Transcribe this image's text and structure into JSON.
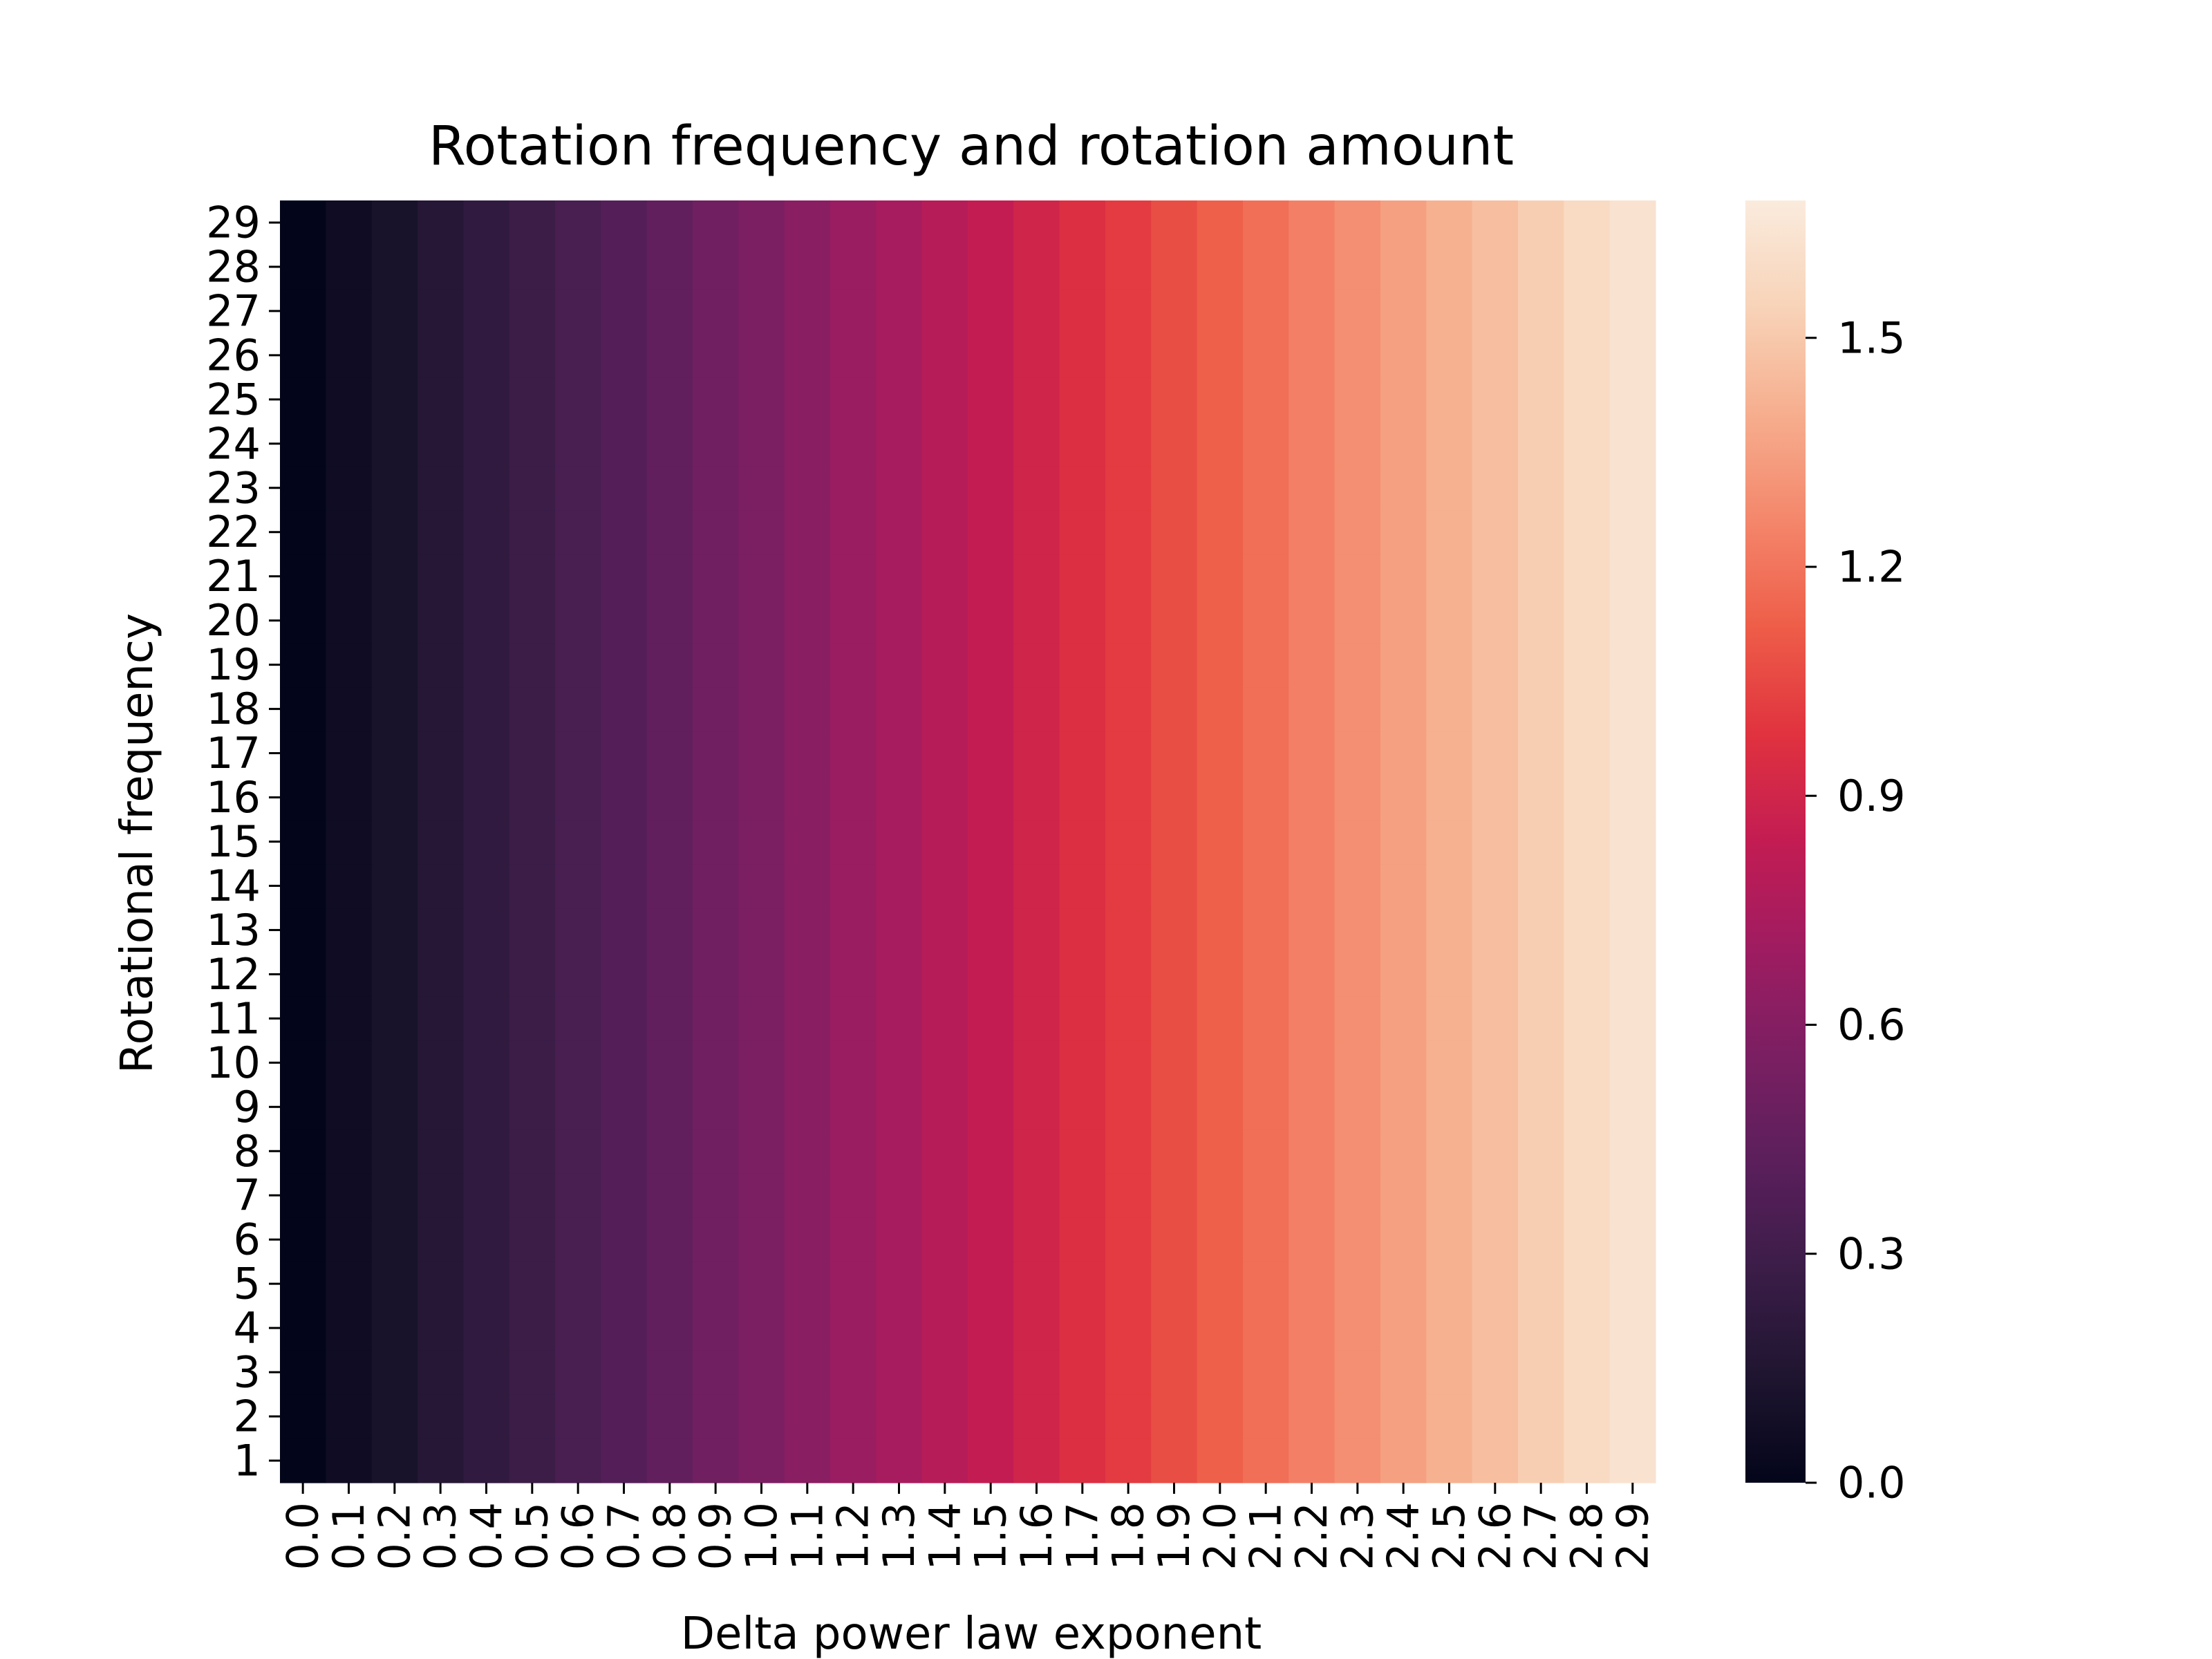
{
  "chart_data": {
    "type": "heatmap",
    "title": "Rotation frequency and rotation amount",
    "xlabel": "Delta power law exponent",
    "ylabel": "Rotational frequency",
    "x_categories": [
      "0.0",
      "0.1",
      "0.2",
      "0.3",
      "0.4",
      "0.5",
      "0.6",
      "0.7",
      "0.8",
      "0.9",
      "1.0",
      "1.1",
      "1.2",
      "1.3",
      "1.4",
      "1.5",
      "1.6",
      "1.7",
      "1.8",
      "1.9",
      "2.0",
      "2.1",
      "2.2",
      "2.3",
      "2.4",
      "2.5",
      "2.6",
      "2.7",
      "2.8",
      "2.9"
    ],
    "y_categories": [
      "1",
      "2",
      "3",
      "4",
      "5",
      "6",
      "7",
      "8",
      "9",
      "10",
      "11",
      "12",
      "13",
      "14",
      "15",
      "16",
      "17",
      "18",
      "19",
      "20",
      "21",
      "22",
      "23",
      "24",
      "25",
      "26",
      "27",
      "28",
      "29"
    ],
    "column_values": [
      0.0,
      0.06,
      0.11,
      0.17,
      0.23,
      0.28,
      0.34,
      0.39,
      0.45,
      0.51,
      0.56,
      0.62,
      0.68,
      0.73,
      0.79,
      0.84,
      0.9,
      0.96,
      1.01,
      1.07,
      1.13,
      1.18,
      1.24,
      1.29,
      1.35,
      1.41,
      1.46,
      1.52,
      1.58,
      1.63
    ],
    "value_note": "each column is constant across all rows",
    "colorbar": {
      "range": [
        0.0,
        1.68
      ],
      "ticks": [
        0.0,
        0.3,
        0.6,
        0.9,
        1.2,
        1.5
      ],
      "tick_labels": [
        "0.0",
        "0.3",
        "0.6",
        "0.9",
        "1.2",
        "1.5"
      ],
      "colormap": "rocket"
    },
    "colormap_stops": [
      "#03051a",
      "#1f1530",
      "#3b1d48",
      "#5b1f5c",
      "#7b1f62",
      "#9f1c61",
      "#c31c53",
      "#e0323f",
      "#ee5d48",
      "#f4866b",
      "#f6ae8e",
      "#f8d3b8",
      "#faebdd"
    ]
  }
}
